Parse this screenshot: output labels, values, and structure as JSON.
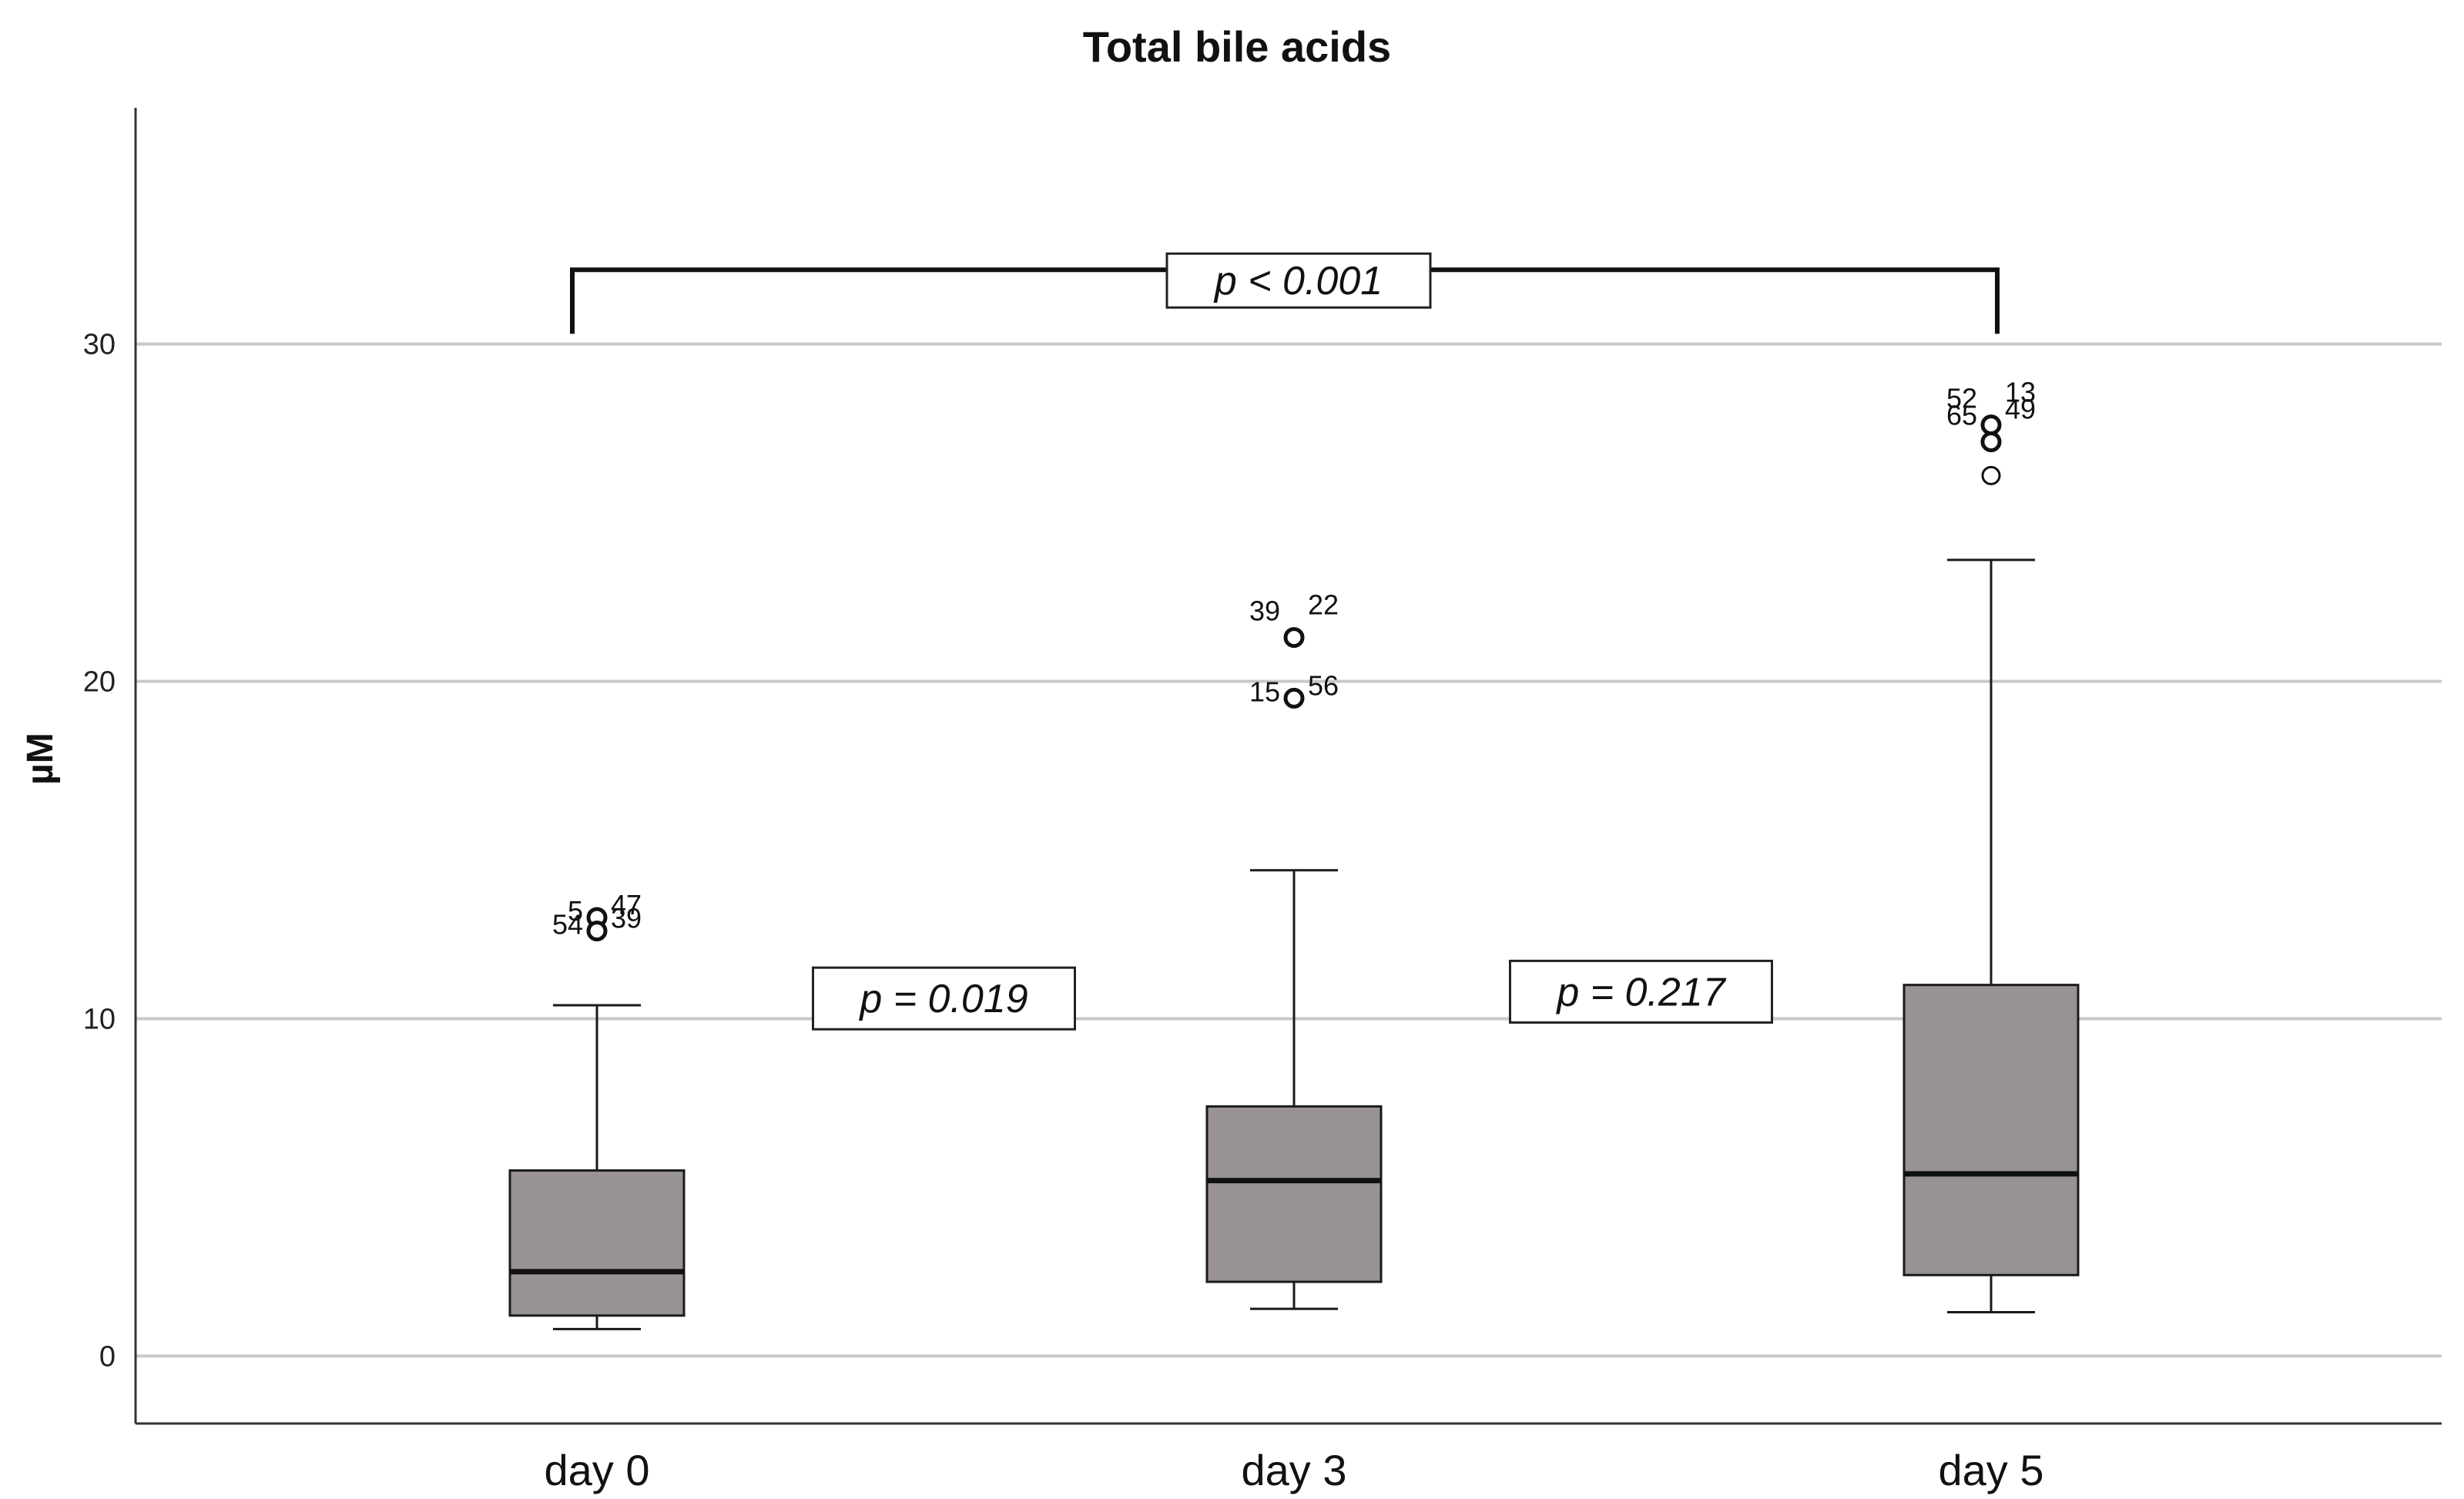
{
  "chart_data": {
    "type": "box",
    "title": "Total bile acids",
    "ylabel": "µM",
    "xlabel": "",
    "ylim": [
      -2,
      37
    ],
    "yticks": [
      0,
      10,
      20,
      30
    ],
    "grid": true,
    "colors": {
      "box_fill": "#999292",
      "stroke": "#1a1a1a",
      "grid": "#c8c8c8"
    },
    "categories": [
      "day 0",
      "day 3",
      "day 5"
    ],
    "boxes": [
      {
        "category": "day 0",
        "whisker_low": 0.8,
        "q1": 1.2,
        "median": 2.5,
        "q3": 5.5,
        "whisker_high": 10.4,
        "outliers": [
          {
            "value": 13.0,
            "label": "5"
          },
          {
            "value": 13.0,
            "label": "47"
          },
          {
            "value": 12.6,
            "label": "54"
          },
          {
            "value": 12.6,
            "label": "39"
          }
        ]
      },
      {
        "category": "day 3",
        "whisker_low": 1.4,
        "q1": 2.2,
        "median": 5.2,
        "q3": 7.4,
        "whisker_high": 14.4,
        "outliers": [
          {
            "value": 21.3,
            "label": "39"
          },
          {
            "value": 21.3,
            "label": "22"
          },
          {
            "value": 19.5,
            "label": "15"
          },
          {
            "value": 19.5,
            "label": "56"
          }
        ]
      },
      {
        "category": "day 5",
        "whisker_low": 1.3,
        "q1": 2.4,
        "median": 5.4,
        "q3": 11.0,
        "whisker_high": 23.6,
        "outliers": [
          {
            "value": 27.6,
            "label": "52"
          },
          {
            "value": 27.6,
            "label": "13"
          },
          {
            "value": 27.1,
            "label": "65"
          },
          {
            "value": 27.1,
            "label": "49"
          },
          {
            "value": 26.1,
            "label": ""
          }
        ]
      }
    ],
    "annotations": [
      {
        "type": "pvalue",
        "text": "p = 0.019",
        "between": [
          "day 0",
          "day 3"
        ],
        "y": 10.6
      },
      {
        "type": "pvalue",
        "text": "p = 0.217",
        "between": [
          "day 3",
          "day 5"
        ],
        "y": 10.8
      },
      {
        "type": "bracket",
        "text": "p < 0.001",
        "from": "day 0",
        "to": "day 5",
        "y": 32.2,
        "tick_bottom": 30.3
      }
    ]
  }
}
